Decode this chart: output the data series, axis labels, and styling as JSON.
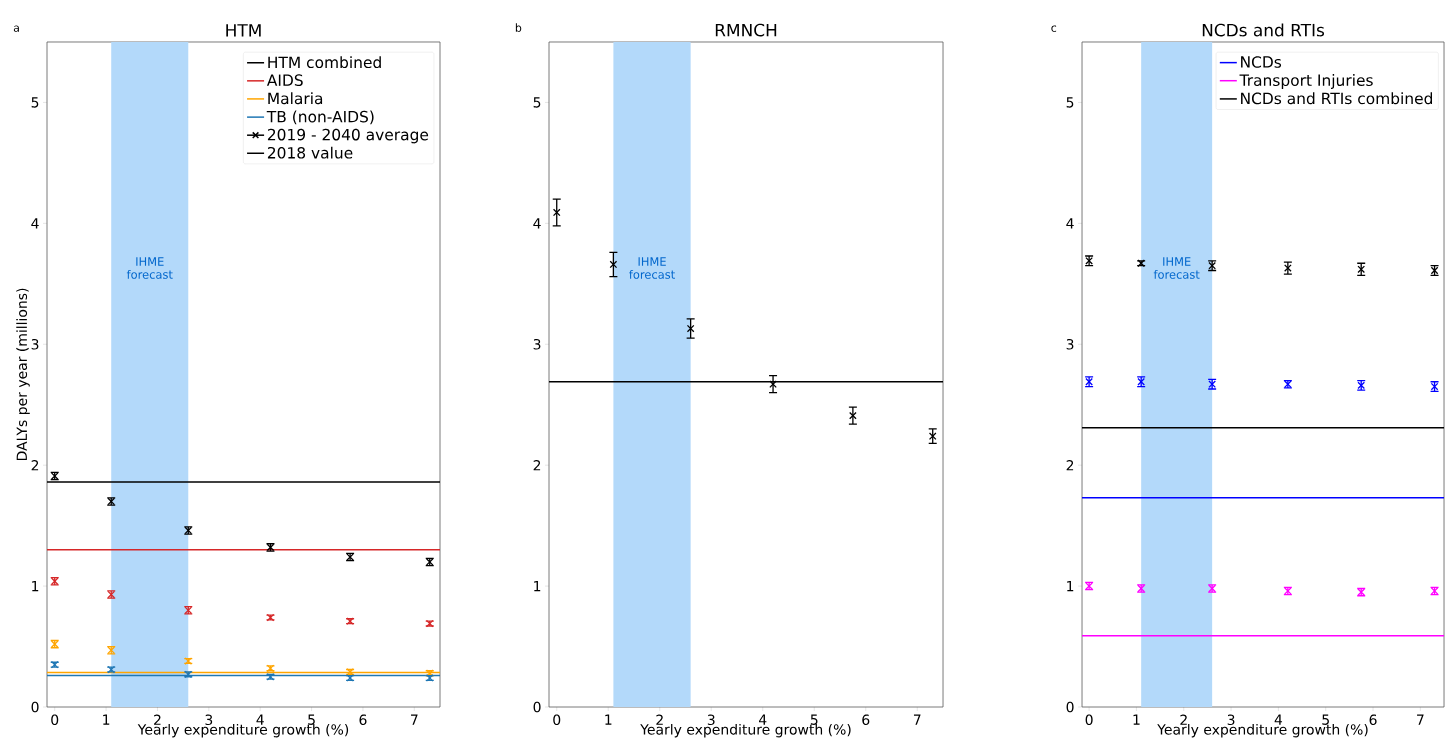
{
  "chart_data": [
    {
      "type": "scatter",
      "title": "HTM",
      "xlabel": "Yearly expenditure growth (%)",
      "ylabel": "DALYs per year (millions)",
      "annotations": [
        "a",
        "2019 - 2040 average",
        "2018 value"
      ],
      "xlim": [
        -0.15,
        7.5
      ],
      "ylim": [
        0,
        5.5
      ],
      "xticks": [
        0,
        1,
        2,
        3,
        4,
        5,
        6,
        7
      ],
      "yticks": [
        0,
        1,
        2,
        3,
        4,
        5
      ],
      "marker": "cross",
      "legend": "top right",
      "bands": [
        {
          "axis": "x",
          "from": 1.1,
          "to": 2.6,
          "label": "IHME forecast",
          "color": "#b3d9fa"
        }
      ],
      "ref_lines": [
        {
          "axis": "y",
          "value": 1.86,
          "color": "#000000"
        },
        {
          "axis": "y",
          "value": 1.3,
          "color": "#d62728"
        },
        {
          "axis": "y",
          "value": 0.285,
          "color": "#ffa500"
        },
        {
          "axis": "y",
          "value": 0.26,
          "color": "#1f77b4"
        }
      ],
      "series": [
        {
          "name": "HTM combined",
          "color": "#000000",
          "x": [
            0,
            1.1,
            2.6,
            4.2,
            5.75,
            7.3
          ],
          "values": [
            1.91,
            1.7,
            1.46,
            1.32,
            1.24,
            1.2
          ],
          "errors": [
            0.03,
            0.03,
            0.03,
            0.03,
            0.03,
            0.03
          ]
        },
        {
          "name": "AIDS",
          "color": "#d62728",
          "x": [
            0,
            1.1,
            2.6,
            4.2,
            5.75,
            7.3
          ],
          "values": [
            1.04,
            0.93,
            0.8,
            0.74,
            0.71,
            0.69
          ],
          "errors": [
            0.03,
            0.03,
            0.03,
            0.02,
            0.02,
            0.02
          ]
        },
        {
          "name": "Malaria",
          "color": "#ffa500",
          "x": [
            0,
            1.1,
            2.6,
            4.2,
            5.75,
            7.3
          ],
          "values": [
            0.52,
            0.47,
            0.38,
            0.32,
            0.29,
            0.28
          ],
          "errors": [
            0.03,
            0.03,
            0.02,
            0.02,
            0.02,
            0.02
          ]
        },
        {
          "name": "TB (non-AIDS)",
          "color": "#1f77b4",
          "x": [
            0,
            1.1,
            2.6,
            4.2,
            5.75,
            7.3
          ],
          "values": [
            0.35,
            0.31,
            0.27,
            0.25,
            0.24,
            0.24
          ],
          "errors": [
            0.02,
            0.02,
            0.02,
            0.02,
            0.02,
            0.02
          ]
        }
      ]
    },
    {
      "type": "scatter",
      "title": "RMNCH",
      "xlabel": "Yearly expenditure growth (%)",
      "annotations": [
        "b"
      ],
      "xlim": [
        -0.15,
        7.5
      ],
      "ylim": [
        0,
        5.5
      ],
      "xticks": [
        0,
        1,
        2,
        3,
        4,
        5,
        6,
        7
      ],
      "yticks": [
        0,
        1,
        2,
        3,
        4,
        5
      ],
      "marker": "cross",
      "bands": [
        {
          "axis": "x",
          "from": 1.1,
          "to": 2.6,
          "label": "IHME forecast",
          "color": "#b3d9fa"
        }
      ],
      "ref_lines": [
        {
          "axis": "y",
          "value": 2.69,
          "color": "#000000"
        }
      ],
      "series": [
        {
          "color": "#000000",
          "x": [
            0,
            1.1,
            2.6,
            4.2,
            5.75,
            7.3
          ],
          "values": [
            4.09,
            3.66,
            3.13,
            2.67,
            2.41,
            2.24
          ],
          "errors": [
            0.11,
            0.1,
            0.08,
            0.07,
            0.07,
            0.06
          ]
        }
      ]
    },
    {
      "type": "scatter",
      "title": "NCDs and RTIs",
      "xlabel": "Yearly expenditure growth (%)",
      "annotations": [
        "c"
      ],
      "xlim": [
        -0.15,
        7.5
      ],
      "ylim": [
        0,
        5.5
      ],
      "xticks": [
        0,
        1,
        2,
        3,
        4,
        5,
        6,
        7
      ],
      "yticks": [
        0,
        1,
        2,
        3,
        4,
        5
      ],
      "marker": "cross",
      "legend": "top right",
      "bands": [
        {
          "axis": "x",
          "from": 1.1,
          "to": 2.6,
          "label": "IHME forecast",
          "color": "#b3d9fa"
        }
      ],
      "ref_lines": [
        {
          "axis": "y",
          "value": 2.31,
          "color": "#000000"
        },
        {
          "axis": "y",
          "value": 1.73,
          "color": "#0000ff"
        },
        {
          "axis": "y",
          "value": 0.59,
          "color": "#ff00ff"
        }
      ],
      "series": [
        {
          "name": "NCDs",
          "color": "#0000ff",
          "x": [
            0,
            1.1,
            2.6,
            4.2,
            5.75,
            7.3
          ],
          "values": [
            2.69,
            2.69,
            2.67,
            2.67,
            2.66,
            2.65
          ],
          "errors": [
            0.04,
            0.04,
            0.04,
            0.03,
            0.04,
            0.04
          ]
        },
        {
          "name": "Transport Injuries",
          "color": "#ff00ff",
          "x": [
            0,
            1.1,
            2.6,
            4.2,
            5.75,
            7.3
          ],
          "values": [
            1.0,
            0.98,
            0.98,
            0.96,
            0.95,
            0.96
          ],
          "errors": [
            0.03,
            0.03,
            0.03,
            0.03,
            0.03,
            0.03
          ]
        },
        {
          "name": "NCDs and RTIs combined",
          "color": "#000000",
          "x": [
            0,
            1.1,
            2.6,
            4.2,
            5.75,
            7.3
          ],
          "values": [
            3.69,
            3.67,
            3.65,
            3.63,
            3.62,
            3.61
          ],
          "errors": [
            0.04,
            0.02,
            0.04,
            0.05,
            0.05,
            0.04
          ]
        }
      ]
    }
  ]
}
